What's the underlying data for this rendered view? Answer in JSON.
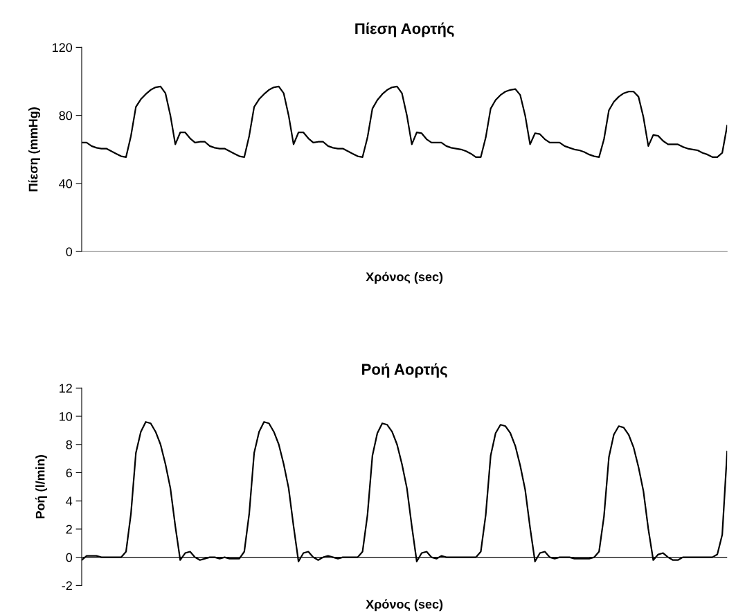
{
  "chart_data": [
    {
      "type": "line",
      "title": "Πίεση Αορτής",
      "xlabel": "Χρόνος (sec)",
      "ylabel": "Πίεση (mmHg)",
      "ylim": [
        0,
        120
      ],
      "yticks": [
        0,
        40,
        80,
        120
      ],
      "grid": false,
      "tick_labels": "y",
      "categories": [
        null,
        null,
        null,
        null,
        null,
        null,
        null,
        null,
        null,
        null,
        null,
        null,
        null,
        null,
        null,
        null,
        null,
        null,
        null,
        null,
        null,
        null,
        null,
        null,
        null,
        null,
        null,
        null,
        null,
        null,
        null,
        null,
        null,
        null,
        null,
        null,
        null,
        null,
        null,
        null,
        null,
        null,
        null,
        null,
        null,
        null,
        null,
        null,
        null,
        null,
        null,
        null,
        null,
        null,
        null,
        null,
        null,
        null,
        null,
        null,
        null,
        null,
        null,
        null,
        null,
        null,
        null,
        null,
        null,
        null,
        null,
        null,
        null,
        null,
        null,
        null,
        null,
        null,
        null,
        null,
        null,
        null,
        null,
        null,
        null,
        null,
        null,
        null,
        null,
        null,
        null,
        null,
        null,
        null,
        null,
        null,
        null,
        null,
        null,
        null,
        null,
        null,
        null,
        null,
        null,
        null,
        null,
        null,
        null,
        null,
        null,
        null,
        null,
        null,
        null,
        null,
        null,
        null,
        null,
        null,
        null,
        null,
        null,
        null,
        null,
        null,
        null,
        null,
        null,
        null,
        null,
        null
      ],
      "series": [
        {
          "color": "#000000",
          "values": [
            64,
            64,
            62,
            61,
            60.5,
            60.5,
            59,
            57.5,
            56,
            55.5,
            68,
            85,
            89.5,
            92.5,
            95,
            96.5,
            97,
            93,
            80,
            63,
            70,
            70,
            66.5,
            64,
            64.5,
            64.5,
            62,
            61,
            60.5,
            60.5,
            59,
            57.5,
            56,
            55.5,
            68,
            85,
            89.5,
            92.5,
            95,
            96.5,
            97,
            93,
            80,
            63,
            70,
            70,
            66.5,
            64,
            64.5,
            64.5,
            62,
            61,
            60.5,
            60.5,
            59,
            57.5,
            56,
            55.5,
            67,
            84,
            89,
            92.5,
            95,
            96.5,
            97,
            93,
            80,
            63,
            70,
            69.5,
            66,
            64,
            64,
            64,
            62,
            61,
            60.5,
            60,
            59,
            57.5,
            55.5,
            55.5,
            67,
            84,
            89,
            92,
            94,
            95,
            95.5,
            92,
            80,
            63,
            69.5,
            69,
            66,
            64,
            64,
            64,
            62,
            61,
            60,
            59.5,
            58.5,
            57,
            56,
            55.5,
            66,
            83,
            88,
            91,
            93,
            94,
            94,
            91,
            79,
            62,
            68.5,
            68,
            65,
            63,
            63,
            63,
            61.5,
            60.5,
            60,
            59.5,
            58,
            57,
            55.5,
            55.5,
            58,
            74
          ]
        }
      ]
    },
    {
      "type": "line",
      "title": "Ροή Αορτής",
      "xlabel": "Χρόνος (sec)",
      "ylabel": "Ροή (l/min)",
      "ylim": [
        -2,
        12
      ],
      "yticks": [
        -2,
        0,
        2,
        4,
        6,
        8,
        10,
        12
      ],
      "grid": false,
      "ref_lines": [
        {
          "axis": "y",
          "value": 0,
          "color": "#000000"
        }
      ],
      "tick_labels": "y",
      "categories": [
        null,
        null,
        null,
        null,
        null,
        null,
        null,
        null,
        null,
        null,
        null,
        null,
        null,
        null,
        null,
        null,
        null,
        null,
        null,
        null,
        null,
        null,
        null,
        null,
        null,
        null,
        null,
        null,
        null,
        null,
        null,
        null,
        null,
        null,
        null,
        null,
        null,
        null,
        null,
        null,
        null,
        null,
        null,
        null,
        null,
        null,
        null,
        null,
        null,
        null,
        null,
        null,
        null,
        null,
        null,
        null,
        null,
        null,
        null,
        null,
        null,
        null,
        null,
        null,
        null,
        null,
        null,
        null,
        null,
        null,
        null,
        null,
        null,
        null,
        null,
        null,
        null,
        null,
        null,
        null,
        null,
        null,
        null,
        null,
        null,
        null,
        null,
        null,
        null,
        null,
        null,
        null,
        null,
        null,
        null,
        null,
        null,
        null,
        null,
        null,
        null,
        null,
        null,
        null,
        null,
        null,
        null,
        null,
        null,
        null,
        null,
        null,
        null,
        null,
        null,
        null,
        null,
        null,
        null,
        null,
        null,
        null,
        null,
        null,
        null,
        null,
        null,
        null,
        null,
        null,
        null,
        null
      ],
      "series": [
        {
          "color": "#000000",
          "values": [
            -0.2,
            0.1,
            0.1,
            0.1,
            0,
            0,
            0,
            0,
            0,
            0.4,
            3.1,
            7.4,
            8.9,
            9.6,
            9.5,
            8.9,
            8.0,
            6.6,
            4.9,
            2.2,
            -0.2,
            0.3,
            0.4,
            0,
            -0.2,
            -0.1,
            0,
            0,
            -0.1,
            0,
            -0.1,
            -0.1,
            -0.1,
            0.4,
            3.1,
            7.4,
            8.9,
            9.6,
            9.5,
            8.9,
            8.0,
            6.6,
            4.9,
            2.2,
            -0.3,
            0.3,
            0.4,
            0,
            -0.2,
            0,
            0.1,
            0,
            -0.1,
            0,
            0,
            0,
            0,
            0.4,
            3.0,
            7.2,
            8.8,
            9.5,
            9.4,
            8.9,
            8.0,
            6.6,
            4.9,
            2.2,
            -0.3,
            0.3,
            0.4,
            0,
            -0.1,
            0.1,
            0,
            0,
            0,
            0,
            0,
            0,
            0,
            0.4,
            3.0,
            7.2,
            8.8,
            9.4,
            9.3,
            8.8,
            7.9,
            6.5,
            4.8,
            2.1,
            -0.3,
            0.3,
            0.4,
            0,
            -0.1,
            0,
            0,
            0,
            -0.1,
            -0.1,
            -0.1,
            -0.1,
            0,
            0.4,
            2.9,
            7.1,
            8.7,
            9.3,
            9.2,
            8.7,
            7.8,
            6.4,
            4.7,
            2.0,
            -0.2,
            0.2,
            0.3,
            0,
            -0.2,
            -0.2,
            0,
            0,
            0,
            0,
            0,
            0,
            0,
            0.2,
            1.6,
            7.5
          ]
        }
      ]
    }
  ]
}
